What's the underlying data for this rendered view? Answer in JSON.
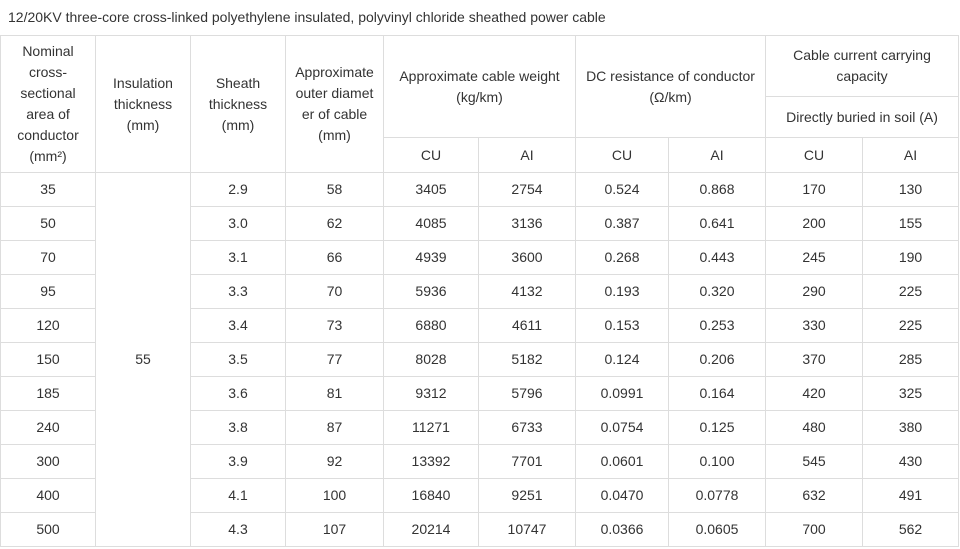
{
  "title": "12/20KV  three-core cross-linked polyethylene insulated, polyvinyl chloride sheathed power cable",
  "table": {
    "headers": {
      "area": "Nominal cross-sectional area of conductor (mm²)",
      "insulation": "Insulation thickness (mm)",
      "sheath": "Sheath thickness (mm)",
      "diameter": "Approximate outer diameter of cable (mm)",
      "weight": "Approximate cable weight (kg/km)",
      "dc_resistance": "DC resistance of conductor (Ω/km)",
      "capacity": "Cable current carrying capacity",
      "capacity_sub": "Directly buried in soil (A)",
      "sub_columns": [
        "CU",
        "AI",
        "CU",
        "AI",
        "CU",
        "AI"
      ]
    },
    "insulation_thickness": "55",
    "rows": [
      [
        "35",
        "2.9",
        "58",
        "3405",
        "2754",
        "0.524",
        "0.868",
        "170",
        "130"
      ],
      [
        "50",
        "3.0",
        "62",
        "4085",
        "3136",
        "0.387",
        "0.641",
        "200",
        "155"
      ],
      [
        "70",
        "3.1",
        "66",
        "4939",
        "3600",
        "0.268",
        "0.443",
        "245",
        "190"
      ],
      [
        "95",
        "3.3",
        "70",
        "5936",
        "4132",
        "0.193",
        "0.320",
        "290",
        "225"
      ],
      [
        "120",
        "3.4",
        "73",
        "6880",
        "4611",
        "0.153",
        "0.253",
        "330",
        "225"
      ],
      [
        "150",
        "3.5",
        "77",
        "8028",
        "5182",
        "0.124",
        "0.206",
        "370",
        "285"
      ],
      [
        "185",
        "3.6",
        "81",
        "9312",
        "5796",
        "0.0991",
        "0.164",
        "420",
        "325"
      ],
      [
        "240",
        "3.8",
        "87",
        "11271",
        "6733",
        "0.0754",
        "0.125",
        "480",
        "380"
      ],
      [
        "300",
        "3.9",
        "92",
        "13392",
        "7701",
        "0.0601",
        "0.100",
        "545",
        "430"
      ],
      [
        "400",
        "4.1",
        "100",
        "16840",
        "9251",
        "0.0470",
        "0.0778",
        "632",
        "491"
      ],
      [
        "500",
        "4.3",
        "107",
        "20214",
        "10747",
        "0.0366",
        "0.0605",
        "700",
        "562"
      ]
    ]
  }
}
